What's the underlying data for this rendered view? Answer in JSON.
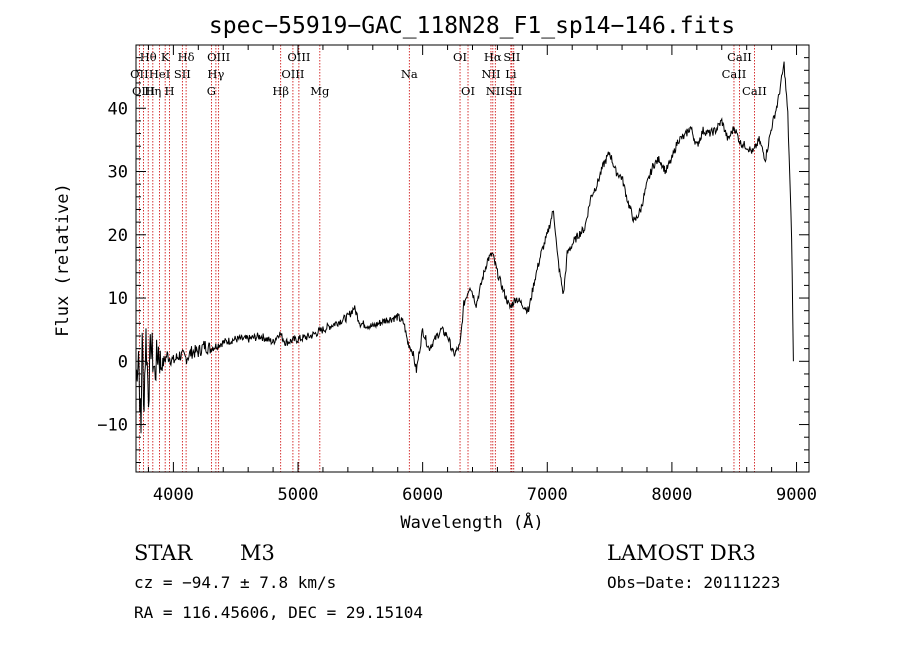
{
  "chart_data": {
    "type": "line",
    "title": "spec−55919−GAC_118N28_F1_sp14−146.fits",
    "xlabel": "Wavelength (Å)",
    "ylabel": "Flux (relative)",
    "xlim": [
      3700,
      9100
    ],
    "ylim": [
      -17.5,
      50
    ],
    "xticks": [
      4000,
      5000,
      6000,
      7000,
      8000,
      9000
    ],
    "xtick_labels": [
      "4000",
      "5000",
      "6000",
      "7000",
      "8000",
      "9000"
    ],
    "yticks": [
      -10,
      0,
      10,
      20,
      30,
      40
    ],
    "ytick_labels": [
      "−10",
      "0",
      "10",
      "20",
      "30",
      "40"
    ],
    "series": [
      {
        "name": "flux",
        "points": [
          [
            3700,
            -3
          ],
          [
            3720,
            2
          ],
          [
            3740,
            -12
          ],
          [
            3750,
            6
          ],
          [
            3760,
            -8
          ],
          [
            3780,
            4
          ],
          [
            3800,
            -5
          ],
          [
            3820,
            3
          ],
          [
            3850,
            -2
          ],
          [
            3880,
            2
          ],
          [
            3900,
            -1
          ],
          [
            3950,
            1
          ],
          [
            4000,
            0
          ],
          [
            4050,
            1
          ],
          [
            4100,
            0.5
          ],
          [
            4150,
            1.5
          ],
          [
            4200,
            1.5
          ],
          [
            4250,
            2.5
          ],
          [
            4300,
            2
          ],
          [
            4350,
            2.5
          ],
          [
            4400,
            3
          ],
          [
            4500,
            3.5
          ],
          [
            4600,
            3.5
          ],
          [
            4700,
            4
          ],
          [
            4800,
            3
          ],
          [
            4850,
            4.5
          ],
          [
            4900,
            3
          ],
          [
            5000,
            3.5
          ],
          [
            5100,
            4
          ],
          [
            5200,
            5
          ],
          [
            5300,
            6
          ],
          [
            5400,
            7
          ],
          [
            5450,
            8.5
          ],
          [
            5500,
            6
          ],
          [
            5600,
            5.5
          ],
          [
            5700,
            6.5
          ],
          [
            5800,
            7
          ],
          [
            5850,
            6
          ],
          [
            5880,
            3
          ],
          [
            5920,
            1.5
          ],
          [
            5950,
            -1.5
          ],
          [
            6000,
            5
          ],
          [
            6050,
            2
          ],
          [
            6100,
            3.5
          ],
          [
            6150,
            5
          ],
          [
            6200,
            4
          ],
          [
            6250,
            1
          ],
          [
            6300,
            2.5
          ],
          [
            6330,
            9
          ],
          [
            6380,
            12
          ],
          [
            6430,
            9
          ],
          [
            6480,
            13
          ],
          [
            6520,
            16
          ],
          [
            6560,
            17
          ],
          [
            6600,
            14
          ],
          [
            6650,
            11
          ],
          [
            6700,
            8.5
          ],
          [
            6750,
            10
          ],
          [
            6800,
            9
          ],
          [
            6850,
            8
          ],
          [
            6900,
            13
          ],
          [
            6950,
            17
          ],
          [
            7000,
            20
          ],
          [
            7050,
            24
          ],
          [
            7080,
            17
          ],
          [
            7100,
            14
          ],
          [
            7130,
            10.5
          ],
          [
            7160,
            17
          ],
          [
            7200,
            18.5
          ],
          [
            7250,
            20
          ],
          [
            7300,
            21
          ],
          [
            7350,
            26
          ],
          [
            7400,
            28
          ],
          [
            7450,
            31
          ],
          [
            7500,
            33
          ],
          [
            7550,
            30
          ],
          [
            7600,
            29
          ],
          [
            7650,
            25
          ],
          [
            7700,
            22
          ],
          [
            7750,
            24
          ],
          [
            7800,
            28
          ],
          [
            7850,
            31
          ],
          [
            7900,
            32
          ],
          [
            7950,
            30
          ],
          [
            8000,
            32
          ],
          [
            8050,
            35
          ],
          [
            8100,
            35.5
          ],
          [
            8150,
            37
          ],
          [
            8200,
            34
          ],
          [
            8250,
            36.5
          ],
          [
            8300,
            36
          ],
          [
            8350,
            36.5
          ],
          [
            8400,
            38
          ],
          [
            8450,
            35
          ],
          [
            8500,
            37
          ],
          [
            8550,
            34.5
          ],
          [
            8600,
            34
          ],
          [
            8650,
            33
          ],
          [
            8700,
            35
          ],
          [
            8750,
            32
          ],
          [
            8800,
            37
          ],
          [
            8850,
            41
          ],
          [
            8900,
            47
          ],
          [
            8930,
            39
          ],
          [
            8960,
            20
          ],
          [
            8975,
            0
          ]
        ]
      }
    ],
    "spectral_lines": [
      {
        "name": "Hθ",
        "wavelength": 3798,
        "row": 0
      },
      {
        "name": "K",
        "wavelength": 3934,
        "row": 0
      },
      {
        "name": "Hδ",
        "wavelength": 4102,
        "row": 0
      },
      {
        "name": "OIII",
        "wavelength": 4363,
        "row": 0
      },
      {
        "name": "OIII",
        "wavelength": 5007,
        "row": 0
      },
      {
        "name": "OI",
        "wavelength": 6300,
        "row": 0
      },
      {
        "name": "Hα",
        "wavelength": 6563,
        "row": 0
      },
      {
        "name": "SII",
        "wavelength": 6716,
        "row": 0
      },
      {
        "name": "CaII",
        "wavelength": 8542,
        "row": 0
      },
      {
        "name": "OII",
        "wavelength": 3727,
        "row": 1
      },
      {
        "name": "HeI",
        "wavelength": 3889,
        "row": 1
      },
      {
        "name": "SII",
        "wavelength": 4072,
        "row": 1
      },
      {
        "name": "Hγ",
        "wavelength": 4341,
        "row": 1
      },
      {
        "name": "OIII",
        "wavelength": 4959,
        "row": 1
      },
      {
        "name": "Na",
        "wavelength": 5893,
        "row": 1
      },
      {
        "name": "NII",
        "wavelength": 6548,
        "row": 1
      },
      {
        "name": "Li",
        "wavelength": 6708,
        "row": 1
      },
      {
        "name": "CaII",
        "wavelength": 8498,
        "row": 1
      },
      {
        "name": "OIII",
        "wavelength": 3760,
        "row": 2
      },
      {
        "name": "Hη",
        "wavelength": 3835,
        "row": 2
      },
      {
        "name": "H",
        "wavelength": 3969,
        "row": 2
      },
      {
        "name": "G",
        "wavelength": 4305,
        "row": 2
      },
      {
        "name": "Hβ",
        "wavelength": 4861,
        "row": 2
      },
      {
        "name": "Mg",
        "wavelength": 5175,
        "row": 2
      },
      {
        "name": "OI",
        "wavelength": 6364,
        "row": 2
      },
      {
        "name": "NII",
        "wavelength": 6583,
        "row": 2
      },
      {
        "name": "SII",
        "wavelength": 6731,
        "row": 2
      },
      {
        "name": "CaII",
        "wavelength": 8662,
        "row": 2
      }
    ],
    "line_color": "#000000",
    "marker_color": "#cc0000"
  },
  "info": {
    "class": "STAR",
    "subclass": "M3",
    "survey": "LAMOST DR3",
    "cz": "cz = −94.7 ± 7.8 km/s",
    "obs_date": "Obs−Date: 20111223",
    "coords": "RA = 116.45606, DEC =  29.15104"
  }
}
